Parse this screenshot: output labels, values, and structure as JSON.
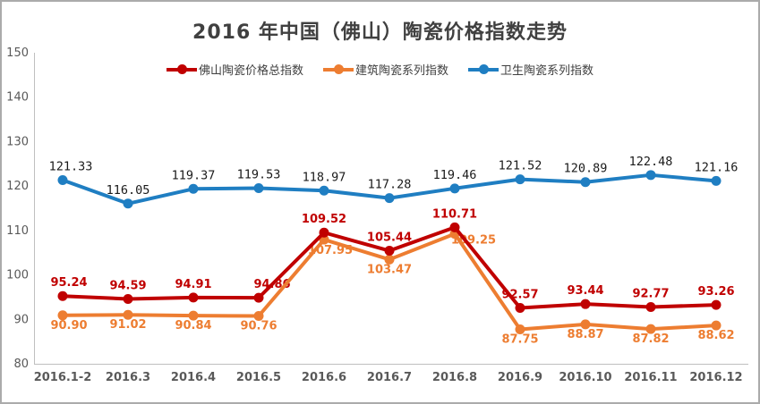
{
  "frame": {
    "background": "#ffffff",
    "border_color": "#ABABAB"
  },
  "chart_data": {
    "type": "line",
    "title": "2016 年中国（佛山）陶瓷价格指数走势",
    "x_categories": [
      "2016.1-2",
      "2016.3",
      "2016.4",
      "2016.5",
      "2016.6",
      "2016.7",
      "2016.8",
      "2016.9",
      "2016.10",
      "2016.11",
      "2016.12"
    ],
    "y_ticks": [
      150,
      140,
      130,
      120,
      110,
      100,
      90,
      80
    ],
    "ylim": [
      80,
      150
    ],
    "grid": false,
    "legend_position": "top-center",
    "axis_color": "#BFBFBF",
    "tick_label_color": "#595959",
    "title_color": "#404040",
    "series": [
      {
        "name": "佛山陶瓷价格总指数",
        "color": "#C00000",
        "label_color": "#C00000",
        "label_side": "above",
        "values": [
          95.24,
          94.59,
          94.91,
          94.86,
          109.52,
          105.44,
          110.71,
          92.57,
          93.44,
          92.77,
          93.26
        ]
      },
      {
        "name": "建筑陶瓷系列指数",
        "color": "#ED7D31",
        "label_color": "#ED7D31",
        "label_side": "below",
        "values": [
          90.9,
          91.02,
          90.84,
          90.76,
          107.95,
          103.47,
          109.25,
          87.75,
          88.87,
          87.82,
          88.62
        ]
      },
      {
        "name": "卫生陶瓷系列指数",
        "color": "#1F7EC2",
        "label_color": "#1A1A1A",
        "label_side": "above",
        "values": [
          121.33,
          116.05,
          119.37,
          119.53,
          118.97,
          117.28,
          119.46,
          121.52,
          120.89,
          122.48,
          121.16
        ]
      }
    ]
  }
}
